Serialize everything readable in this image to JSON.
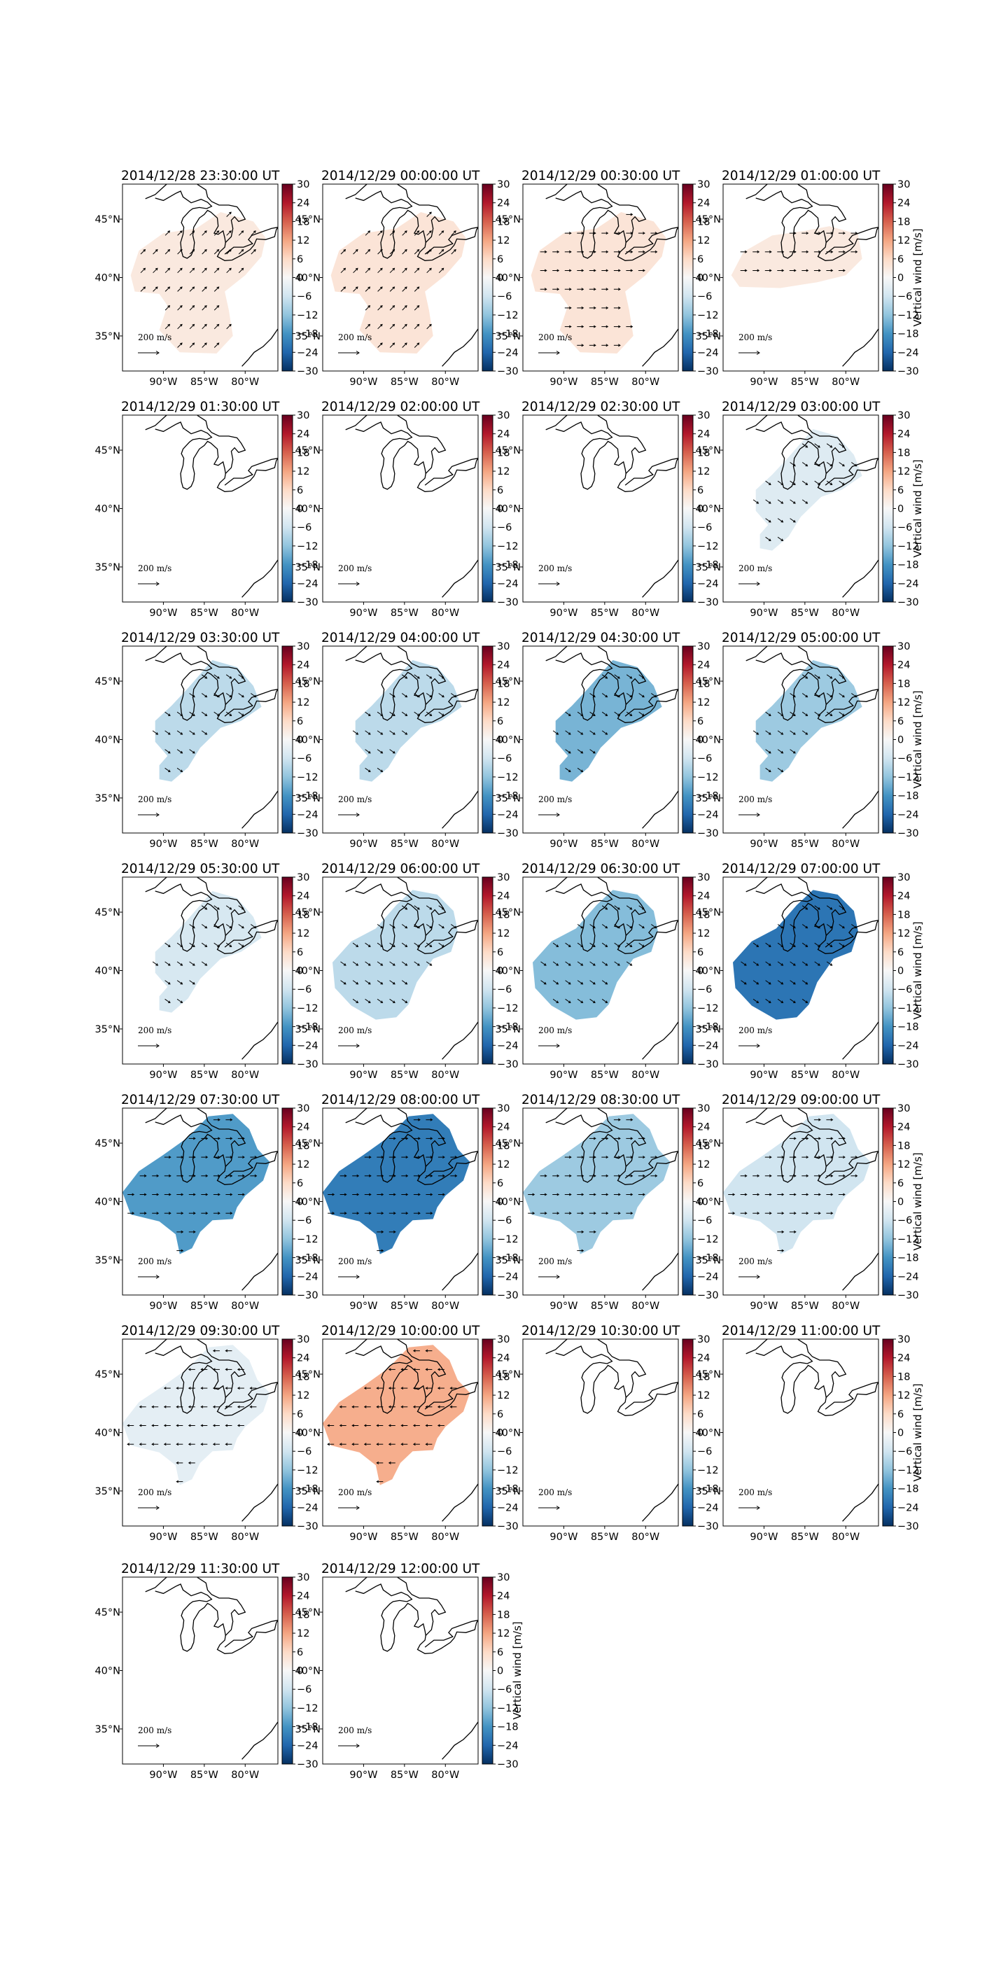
{
  "chart_data": {
    "type": "heatmap",
    "region_lon": [
      -95,
      -76
    ],
    "region_lat": [
      32,
      48
    ],
    "x_ticks": [
      "90°W",
      "85°W",
      "80°W"
    ],
    "y_ticks": [
      "45°N",
      "40°N",
      "35°N"
    ],
    "colorbar": {
      "ticks": [
        "30",
        "24",
        "18",
        "12",
        "6",
        "0",
        "−6",
        "−12",
        "−18",
        "−24",
        "−30"
      ],
      "range": [
        -30,
        30
      ],
      "cmap": "RdBu_r",
      "label": "Vertical wind [m/s]"
    },
    "arrow_scale_label": "200 m/s",
    "panels": [
      {
        "title": "2014/12/28 23:30:00 UT",
        "value": 3,
        "shape": "a",
        "wind_dir": "NE"
      },
      {
        "title": "2014/12/29 00:00:00 UT",
        "value": 4,
        "shape": "a",
        "wind_dir": "NE"
      },
      {
        "title": "2014/12/29 00:30:00 UT",
        "value": 4,
        "shape": "a",
        "wind_dir": "E"
      },
      {
        "title": "2014/12/29 01:00:00 UT",
        "value": 3,
        "shape": "b",
        "wind_dir": "E"
      },
      {
        "title": "2014/12/29 01:30:00 UT",
        "value": null,
        "shape": "none",
        "wind_dir": null
      },
      {
        "title": "2014/12/29 02:00:00 UT",
        "value": null,
        "shape": "none",
        "wind_dir": null
      },
      {
        "title": "2014/12/29 02:30:00 UT",
        "value": null,
        "shape": "none",
        "wind_dir": null
      },
      {
        "title": "2014/12/29 03:00:00 UT",
        "value": -4,
        "shape": "c",
        "wind_dir": "SE"
      },
      {
        "title": "2014/12/29 03:30:00 UT",
        "value": -8,
        "shape": "c",
        "wind_dir": "SE"
      },
      {
        "title": "2014/12/29 04:00:00 UT",
        "value": -8,
        "shape": "c",
        "wind_dir": "SE"
      },
      {
        "title": "2014/12/29 04:30:00 UT",
        "value": -14,
        "shape": "c",
        "wind_dir": "SE"
      },
      {
        "title": "2014/12/29 05:00:00 UT",
        "value": -11,
        "shape": "c",
        "wind_dir": "SE"
      },
      {
        "title": "2014/12/29 05:30:00 UT",
        "value": -5,
        "shape": "c",
        "wind_dir": "SE"
      },
      {
        "title": "2014/12/29 06:00:00 UT",
        "value": -8,
        "shape": "d",
        "wind_dir": "SE"
      },
      {
        "title": "2014/12/29 06:30:00 UT",
        "value": -13,
        "shape": "d",
        "wind_dir": "SE"
      },
      {
        "title": "2014/12/29 07:00:00 UT",
        "value": -22,
        "shape": "d",
        "wind_dir": "SE"
      },
      {
        "title": "2014/12/29 07:30:00 UT",
        "value": -17,
        "shape": "e",
        "wind_dir": "E"
      },
      {
        "title": "2014/12/29 08:00:00 UT",
        "value": -21,
        "shape": "e",
        "wind_dir": "E"
      },
      {
        "title": "2014/12/29 08:30:00 UT",
        "value": -11,
        "shape": "e",
        "wind_dir": "E"
      },
      {
        "title": "2014/12/29 09:00:00 UT",
        "value": -6,
        "shape": "e",
        "wind_dir": "E"
      },
      {
        "title": "2014/12/29 09:30:00 UT",
        "value": -3,
        "shape": "e",
        "wind_dir": "W"
      },
      {
        "title": "2014/12/29 10:00:00 UT",
        "value": 11,
        "shape": "e",
        "wind_dir": "W"
      },
      {
        "title": "2014/12/29 10:30:00 UT",
        "value": null,
        "shape": "none",
        "wind_dir": null
      },
      {
        "title": "2014/12/29 11:00:00 UT",
        "value": null,
        "shape": "none",
        "wind_dir": null
      },
      {
        "title": "2014/12/29 11:30:00 UT",
        "value": null,
        "shape": "none",
        "wind_dir": null
      },
      {
        "title": "2014/12/29 12:00:00 UT",
        "value": null,
        "shape": "none",
        "wind_dir": null
      }
    ]
  }
}
